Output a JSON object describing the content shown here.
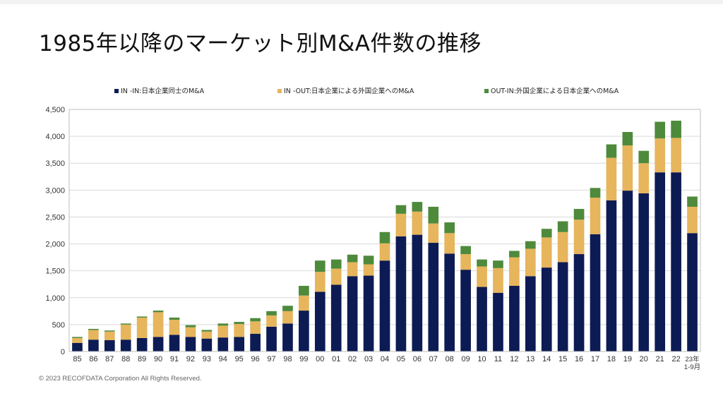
{
  "page": {
    "title": "1985年以降のマーケット別M&A件数の推移",
    "copyright": "© 2023 RECOFDATA Corporation All Rights Reserved."
  },
  "chart_data": {
    "type": "bar",
    "stacked": true,
    "categories": [
      "85",
      "86",
      "87",
      "88",
      "89",
      "90",
      "91",
      "92",
      "93",
      "94",
      "95",
      "96",
      "97",
      "98",
      "99",
      "00",
      "01",
      "02",
      "03",
      "04",
      "05",
      "06",
      "07",
      "08",
      "09",
      "10",
      "11",
      "12",
      "13",
      "14",
      "15",
      "16",
      "17",
      "18",
      "19",
      "20",
      "21",
      "22",
      "23年\n1-9月"
    ],
    "series": [
      {
        "name": "IN -IN:日本企業同士のM&A",
        "color": "#0d1b54",
        "values": [
          160,
          220,
          210,
          220,
          250,
          270,
          310,
          270,
          240,
          260,
          270,
          330,
          460,
          520,
          760,
          1110,
          1240,
          1400,
          1410,
          1690,
          2140,
          2170,
          2020,
          1820,
          1520,
          1200,
          1090,
          1220,
          1400,
          1560,
          1660,
          1810,
          2180,
          2810,
          2990,
          2940,
          3330,
          3330,
          2200
        ]
      },
      {
        "name": "IN -OUT:日本企業による外国企業へのM&A",
        "color": "#e6b55c",
        "values": [
          90,
          180,
          160,
          280,
          380,
          460,
          280,
          180,
          130,
          220,
          240,
          230,
          210,
          230,
          280,
          370,
          300,
          260,
          210,
          320,
          420,
          430,
          360,
          380,
          290,
          380,
          460,
          530,
          510,
          560,
          560,
          640,
          680,
          790,
          840,
          560,
          630,
          640,
          490
        ]
      },
      {
        "name": "OUT-IN:外国企業による日本企業へのM&A",
        "color": "#4e8a3c",
        "values": [
          20,
          20,
          20,
          20,
          20,
          30,
          40,
          40,
          30,
          40,
          40,
          60,
          80,
          100,
          180,
          210,
          170,
          140,
          160,
          210,
          160,
          180,
          310,
          200,
          150,
          130,
          140,
          120,
          140,
          160,
          200,
          200,
          180,
          250,
          250,
          230,
          310,
          320,
          190
        ]
      }
    ],
    "ylim": [
      0,
      4500
    ],
    "yticks": [
      0,
      500,
      1000,
      1500,
      2000,
      2500,
      3000,
      3500,
      4000,
      4500
    ],
    "ytick_labels": [
      "0",
      "500",
      "1,000",
      "1,500",
      "2,000",
      "2,500",
      "3,000",
      "3,500",
      "4,000",
      "4,500"
    ],
    "grid": true,
    "legend_position": "top",
    "xlabel": "",
    "ylabel": ""
  }
}
